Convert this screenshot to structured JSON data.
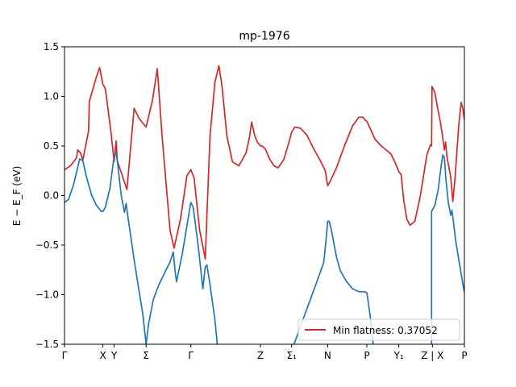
{
  "chart_data": {
    "type": "line",
    "title": "mp-1976",
    "ylabel": "E − E_F (eV)",
    "ylim": [
      -1.5,
      1.5
    ],
    "xlim": [
      0,
      100
    ],
    "grid": false,
    "legend_placement": "lower-right",
    "y_ticks": [
      -1.5,
      -1.0,
      -0.5,
      0.0,
      0.5,
      1.0,
      1.5
    ],
    "y_tick_labels": [
      "−1.5",
      "−1.0",
      "−0.5",
      "0.0",
      "0.5",
      "1.0",
      "1.5"
    ],
    "x_ticks": [
      {
        "label": "Γ",
        "x": 0
      },
      {
        "label": "X",
        "x": 9.6
      },
      {
        "label": "Y",
        "x": 12.4
      },
      {
        "label": "Σ",
        "x": 20.4
      },
      {
        "label": "Γ",
        "x": 31.6
      },
      {
        "label": "Z",
        "x": 49.0
      },
      {
        "label": "Σ₁",
        "x": 56.8
      },
      {
        "label": "N",
        "x": 65.8
      },
      {
        "label": "P",
        "x": 75.6
      },
      {
        "label": "Y₁",
        "x": 83.6
      },
      {
        "label": "Z | X",
        "x": 92.0
      },
      {
        "label": "P",
        "x": 100
      }
    ],
    "series": [
      {
        "name": "Min flatness: 0.37052",
        "color": "#d62728",
        "points": [
          [
            0,
            0.26
          ],
          [
            1.5,
            0.3
          ],
          [
            3,
            0.38
          ],
          [
            3.3,
            0.46
          ],
          [
            4,
            0.43
          ],
          [
            4.6,
            0.36
          ],
          [
            6,
            0.65
          ],
          [
            6.2,
            0.95
          ],
          [
            8,
            1.2
          ],
          [
            8.8,
            1.29
          ],
          [
            9.6,
            1.12
          ],
          [
            10.2,
            1.08
          ],
          [
            11.6,
            0.65
          ],
          [
            12.4,
            0.34
          ],
          [
            12.9,
            0.55
          ],
          [
            13.2,
            0.35
          ],
          [
            15.6,
            0.06
          ],
          [
            17.4,
            0.88
          ],
          [
            18.6,
            0.78
          ],
          [
            20.4,
            0.69
          ],
          [
            22,
            0.96
          ],
          [
            23.2,
            1.28
          ],
          [
            24.4,
            0.6
          ],
          [
            26.4,
            -0.35
          ],
          [
            27.4,
            -0.53
          ],
          [
            29,
            -0.24
          ],
          [
            30.6,
            0.2
          ],
          [
            31.6,
            0.26
          ],
          [
            32.4,
            0.18
          ],
          [
            33.8,
            -0.35
          ],
          [
            35.2,
            -0.64
          ],
          [
            35.6,
            -0.2
          ],
          [
            36.4,
            0.6
          ],
          [
            37.6,
            1.14
          ],
          [
            38.6,
            1.31
          ],
          [
            39.4,
            1.1
          ],
          [
            40.6,
            0.6
          ],
          [
            42,
            0.34
          ],
          [
            43.6,
            0.3
          ],
          [
            45.4,
            0.43
          ],
          [
            46.2,
            0.58
          ],
          [
            46.8,
            0.74
          ],
          [
            47.6,
            0.6
          ],
          [
            48.2,
            0.54
          ],
          [
            49,
            0.5
          ],
          [
            49.4,
            0.5
          ],
          [
            50.2,
            0.47
          ],
          [
            51.4,
            0.36
          ],
          [
            52.4,
            0.3
          ],
          [
            53.4,
            0.28
          ],
          [
            54.8,
            0.36
          ],
          [
            56,
            0.52
          ],
          [
            56.8,
            0.64
          ],
          [
            57.6,
            0.69
          ],
          [
            59,
            0.68
          ],
          [
            60.6,
            0.61
          ],
          [
            62.2,
            0.48
          ],
          [
            64,
            0.35
          ],
          [
            65.2,
            0.25
          ],
          [
            65.8,
            0.1
          ],
          [
            66.4,
            0.14
          ],
          [
            68,
            0.28
          ],
          [
            70,
            0.5
          ],
          [
            72,
            0.7
          ],
          [
            73.6,
            0.79
          ],
          [
            74.6,
            0.79
          ],
          [
            75.2,
            0.76
          ],
          [
            75.6,
            0.75
          ],
          [
            76.4,
            0.68
          ],
          [
            77.6,
            0.57
          ],
          [
            79.2,
            0.5
          ],
          [
            80.4,
            0.46
          ],
          [
            81.6,
            0.42
          ],
          [
            82.6,
            0.34
          ],
          [
            83.6,
            0.24
          ],
          [
            84.2,
            0.21
          ],
          [
            84.8,
            -0.04
          ],
          [
            85.6,
            -0.24
          ],
          [
            86.4,
            -0.3
          ],
          [
            87.6,
            -0.26
          ],
          [
            89,
            0.0
          ],
          [
            90.6,
            0.41
          ],
          [
            91.5,
            0.51
          ],
          [
            91.8,
            0.5
          ],
          [
            91.9,
            1.1
          ],
          [
            92.6,
            1.04
          ],
          [
            93.4,
            0.86
          ],
          [
            94,
            0.74
          ],
          [
            94.6,
            0.58
          ],
          [
            95,
            0.46
          ],
          [
            95.3,
            0.54
          ],
          [
            95.6,
            0.4
          ],
          [
            96.6,
            0.18
          ],
          [
            97.1,
            -0.06
          ],
          [
            97.6,
            0.15
          ],
          [
            98.6,
            0.72
          ],
          [
            99.2,
            0.94
          ],
          [
            99.6,
            0.88
          ],
          [
            100,
            0.76
          ]
        ]
      },
      {
        "name": "",
        "color": "#1f77b4",
        "points": [
          [
            0,
            -0.07
          ],
          [
            1,
            -0.04
          ],
          [
            2.2,
            0.1
          ],
          [
            3.4,
            0.3
          ],
          [
            3.8,
            0.37
          ],
          [
            4.6,
            0.35
          ],
          [
            5.4,
            0.2
          ],
          [
            6.8,
            0.0
          ],
          [
            8,
            -0.1
          ],
          [
            9.2,
            -0.16
          ],
          [
            9.6,
            -0.16
          ],
          [
            10.2,
            -0.12
          ],
          [
            11.4,
            0.08
          ],
          [
            12.4,
            0.4
          ],
          [
            12.8,
            0.44
          ],
          [
            13.2,
            0.35
          ],
          [
            14.2,
            0.0
          ],
          [
            15,
            -0.17
          ],
          [
            15.4,
            -0.08
          ],
          [
            15.8,
            -0.2
          ],
          [
            17.6,
            -0.7
          ],
          [
            19.6,
            -1.2
          ],
          [
            20.4,
            -1.5
          ],
          [
            21,
            -1.3
          ],
          [
            22.2,
            -1.05
          ],
          [
            23.6,
            -0.9
          ],
          [
            25.4,
            -0.75
          ],
          [
            26.4,
            -0.67
          ],
          [
            27.2,
            -0.57
          ],
          [
            27.6,
            -0.74
          ],
          [
            28,
            -0.87
          ],
          [
            29.4,
            -0.6
          ],
          [
            31.2,
            -0.16
          ],
          [
            31.6,
            -0.07
          ],
          [
            32.2,
            -0.12
          ],
          [
            33.4,
            -0.5
          ],
          [
            34.6,
            -0.94
          ],
          [
            35.2,
            -0.72
          ],
          [
            35.6,
            -0.7
          ],
          [
            36.4,
            -0.9
          ],
          [
            37.6,
            -1.25
          ],
          [
            38.2,
            -1.5
          ]
        ]
      },
      {
        "name": "",
        "color": "#1f77b4",
        "points": [
          [
            57.4,
            -1.5
          ],
          [
            59,
            -1.32
          ],
          [
            61,
            -1.1
          ],
          [
            63,
            -0.88
          ],
          [
            64.8,
            -0.68
          ],
          [
            65.4,
            -0.45
          ],
          [
            65.8,
            -0.26
          ],
          [
            66.2,
            -0.26
          ],
          [
            66.8,
            -0.36
          ],
          [
            68,
            -0.62
          ],
          [
            69,
            -0.76
          ],
          [
            70.4,
            -0.86
          ],
          [
            72,
            -0.94
          ],
          [
            73.6,
            -0.97
          ],
          [
            75,
            -0.97
          ],
          [
            75.6,
            -0.98
          ],
          [
            76.4,
            -1.2
          ],
          [
            77.2,
            -1.5
          ]
        ]
      },
      {
        "name": "",
        "color": "#1f77b4",
        "points": [
          [
            91.8,
            -1.5
          ],
          [
            91.8,
            -0.16
          ],
          [
            92.6,
            -0.1
          ],
          [
            93.4,
            0.05
          ],
          [
            94.2,
            0.3
          ],
          [
            94.6,
            0.41
          ],
          [
            95,
            0.38
          ],
          [
            95.4,
            0.15
          ],
          [
            96,
            -0.08
          ],
          [
            96.6,
            -0.2
          ],
          [
            96.9,
            -0.15
          ],
          [
            97.3,
            -0.28
          ],
          [
            97.8,
            -0.45
          ],
          [
            98.6,
            -0.65
          ],
          [
            99.4,
            -0.84
          ],
          [
            100,
            -0.98
          ]
        ]
      }
    ]
  }
}
